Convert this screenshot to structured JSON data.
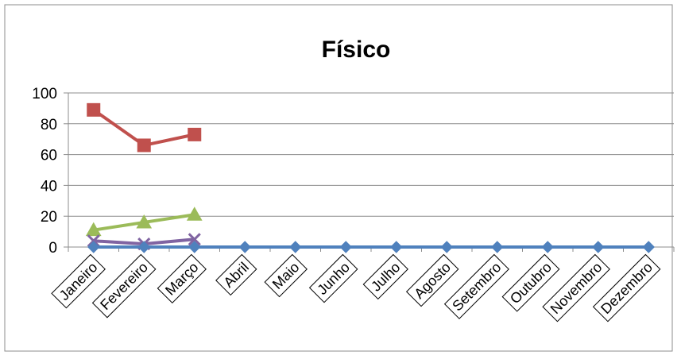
{
  "chart_data": {
    "type": "line",
    "title": "Físico",
    "xlabel": "",
    "ylabel": "",
    "ylim": [
      0,
      100
    ],
    "yticks": [
      0,
      20,
      40,
      60,
      80,
      100
    ],
    "grid": true,
    "legend": "none",
    "categories": [
      "Janeiro",
      "Fevereiro",
      "Março",
      "Abril",
      "Maio",
      "Junho",
      "Julho",
      "Agosto",
      "Setembro",
      "Outubro",
      "Novembro",
      "Dezembro"
    ],
    "series": [
      {
        "color": "#c0504d",
        "marker": "square",
        "values": [
          89,
          66,
          73,
          null,
          null,
          null,
          null,
          null,
          null,
          null,
          null,
          null
        ]
      },
      {
        "color": "#9bbb59",
        "marker": "triangle",
        "values": [
          11,
          16,
          21,
          null,
          null,
          null,
          null,
          null,
          null,
          null,
          null,
          null
        ]
      },
      {
        "color": "#8064a2",
        "marker": "x",
        "values": [
          4,
          2,
          5,
          null,
          null,
          null,
          null,
          null,
          null,
          null,
          null,
          null
        ]
      },
      {
        "color": "#4f81bd",
        "marker": "diamond",
        "values": [
          0,
          0,
          0,
          0,
          0,
          0,
          0,
          0,
          0,
          0,
          0,
          0
        ]
      }
    ]
  }
}
